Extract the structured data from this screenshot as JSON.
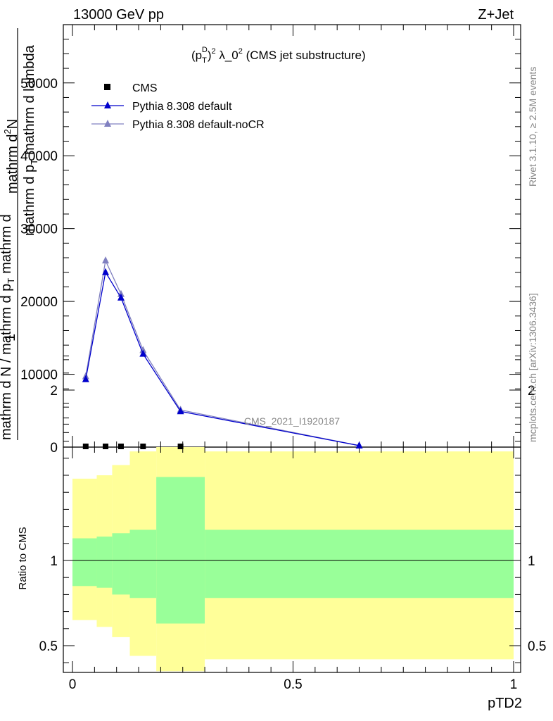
{
  "header": {
    "energy": "13000 GeV pp",
    "process": "Z+Jet"
  },
  "plot_title": {
    "base": "(p",
    "sub": "T",
    "sup_d": "D",
    "rest": ")",
    "sup2": "2",
    "tail": " λ_0",
    "sup3": "2",
    "end": " (CMS jet substructure)"
  },
  "side_labels": {
    "rivet": "Rivet 3.1.10, ≥ 2.5M events",
    "mcplots": "mcplots.cern.ch [arXiv:1306.3436]"
  },
  "watermark": "CMS_2021_I1920187",
  "colors": {
    "pythia_default": "#0000cc",
    "pythia_nocr": "#8080c0",
    "band_inner": "#99ff99",
    "band_outer": "#ffff99"
  },
  "chart_data": [
    {
      "type": "line",
      "role": "main",
      "ylabel": {
        "line1": "1",
        "line2": "mathrm d N / mathrm d p",
        "line2_sub": "T",
        "line2_tail": "mathrm d",
        "line3": "mathrm d",
        "line3_sup": "2",
        "line3_tail": "N",
        "line4": "mathrm d p",
        "line4_sub": "T",
        "line4_tail": "mathrm d lambda"
      },
      "xlim": [
        0,
        1
      ],
      "ylim": [
        0,
        58000
      ],
      "yticks": [
        {
          "v": 0,
          "label": "0"
        },
        {
          "v": 10000,
          "label": "10000"
        },
        {
          "v": 20000,
          "label": "20000"
        },
        {
          "v": 30000,
          "label": "30000"
        },
        {
          "v": 40000,
          "label": "40000"
        },
        {
          "v": 50000,
          "label": "50000"
        }
      ],
      "series": [
        {
          "name": "CMS",
          "marker": "square",
          "x": [
            0.03,
            0.075,
            0.11,
            0.16,
            0.245
          ],
          "y": [
            0,
            0,
            0,
            0,
            0
          ]
        },
        {
          "name": "Pythia 8.308 default",
          "marker": "triangle",
          "x": [
            0.03,
            0.075,
            0.11,
            0.16,
            0.245,
            0.65
          ],
          "y": [
            9300,
            24000,
            20500,
            12800,
            4900,
            200
          ]
        },
        {
          "name": "Pythia 8.308 default-noCR",
          "marker": "triangle",
          "x": [
            0.03,
            0.075,
            0.11,
            0.16,
            0.245,
            0.65
          ],
          "y": [
            9700,
            25600,
            21000,
            13300,
            5100,
            200
          ]
        }
      ],
      "legend": "top-left"
    },
    {
      "type": "area",
      "role": "ratio",
      "ylabel": "Ratio to CMS",
      "xlabel": "pTD2",
      "xlim": [
        0,
        1
      ],
      "ylim": [
        0.35,
        2.25
      ],
      "xticks": [
        {
          "v": 0,
          "label": "0"
        },
        {
          "v": 0.5,
          "label": "0.5"
        },
        {
          "v": 1,
          "label": "1"
        }
      ],
      "yticks": [
        {
          "v": 0.5,
          "label": "0.5"
        },
        {
          "v": 1,
          "label": "1"
        },
        {
          "v": 2,
          "label": "2"
        }
      ],
      "reference_line": 1,
      "bins": [
        {
          "x0": 0.0,
          "x1": 0.055,
          "inner": [
            0.85,
            1.13
          ],
          "outer": [
            0.65,
            1.48
          ]
        },
        {
          "x0": 0.055,
          "x1": 0.09,
          "inner": [
            0.84,
            1.14
          ],
          "outer": [
            0.61,
            1.5
          ]
        },
        {
          "x0": 0.09,
          "x1": 0.13,
          "inner": [
            0.8,
            1.16
          ],
          "outer": [
            0.55,
            1.56
          ]
        },
        {
          "x0": 0.13,
          "x1": 0.19,
          "inner": [
            0.78,
            1.18
          ],
          "outer": [
            0.44,
            1.64
          ]
        },
        {
          "x0": 0.19,
          "x1": 0.3,
          "inner": [
            0.63,
            1.49
          ],
          "outer": [
            0.35,
            1.87
          ]
        },
        {
          "x0": 0.3,
          "x1": 1.0,
          "inner": [
            0.78,
            1.18
          ],
          "outer": [
            0.42,
            1.64
          ]
        }
      ]
    }
  ]
}
